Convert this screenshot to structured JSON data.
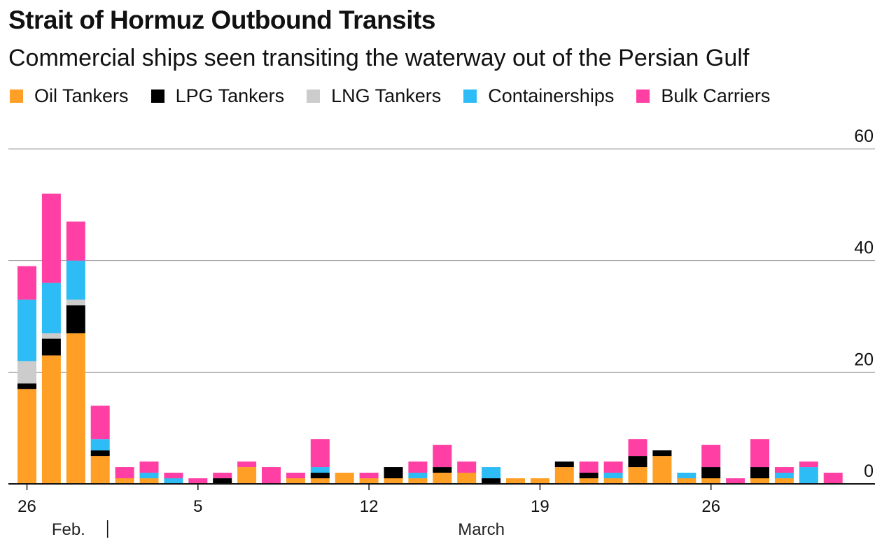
{
  "title": "Strait of Hormuz Outbound Transits",
  "subtitle": "Commercial ships seen transiting the waterway out of the Persian Gulf",
  "legend": [
    {
      "label": "Oil Tankers",
      "color": "#ff9f26"
    },
    {
      "label": "LPG Tankers",
      "color": "#000000"
    },
    {
      "label": "LNG Tankers",
      "color": "#cccccc"
    },
    {
      "label": "Containerships",
      "color": "#2dbcf5"
    },
    {
      "label": "Bulk Carriers",
      "color": "#ff3fa4"
    }
  ],
  "chart_data": {
    "type": "bar",
    "stacked": true,
    "ylim": [
      0,
      60
    ],
    "y_ticks": [
      0,
      20,
      40,
      60
    ],
    "y_axis_side": "right",
    "grid": true,
    "x_tick_labels": [
      {
        "day": 0,
        "label": "26"
      },
      {
        "day": 7,
        "label": "5"
      },
      {
        "day": 14,
        "label": "12"
      },
      {
        "day": 21,
        "label": "19"
      },
      {
        "day": 28,
        "label": "26"
      }
    ],
    "month_labels": [
      {
        "day": 1.7,
        "label": "Feb."
      },
      {
        "day": 18.6,
        "label": "March"
      }
    ],
    "month_divider_day": 3.3,
    "categories": [
      "Feb 26",
      "Feb 27",
      "Feb 28",
      "Mar 1",
      "Mar 2",
      "Mar 3",
      "Mar 4",
      "Mar 5",
      "Mar 6",
      "Mar 7",
      "Mar 8",
      "Mar 9",
      "Mar 10",
      "Mar 11",
      "Mar 12",
      "Mar 13",
      "Mar 14",
      "Mar 15",
      "Mar 16",
      "Mar 17",
      "Mar 18",
      "Mar 19",
      "Mar 20",
      "Mar 21",
      "Mar 22",
      "Mar 23",
      "Mar 24",
      "Mar 25",
      "Mar 26",
      "Mar 27",
      "Mar 28",
      "Mar 29",
      "Mar 30",
      "Mar 31"
    ],
    "series": [
      {
        "name": "Oil Tankers",
        "color": "#ff9f26",
        "values": [
          17,
          23,
          27,
          5,
          1,
          1,
          0,
          0,
          0,
          3,
          0,
          1,
          1,
          2,
          1,
          1,
          1,
          2,
          2,
          0,
          1,
          1,
          3,
          1,
          1,
          3,
          5,
          1,
          1,
          0,
          1,
          1,
          0,
          0
        ]
      },
      {
        "name": "LPG Tankers",
        "color": "#000000",
        "values": [
          1,
          3,
          5,
          1,
          0,
          0,
          0,
          0,
          1,
          0,
          0,
          0,
          1,
          0,
          0,
          2,
          0,
          1,
          0,
          1,
          0,
          0,
          1,
          1,
          0,
          2,
          1,
          0,
          2,
          0,
          2,
          0,
          0,
          0
        ]
      },
      {
        "name": "LNG Tankers",
        "color": "#cccccc",
        "values": [
          4,
          1,
          1,
          0,
          0,
          0,
          0,
          0,
          0,
          0,
          0,
          0,
          0,
          0,
          0,
          0,
          0,
          0,
          0,
          0,
          0,
          0,
          0,
          0,
          0,
          0,
          0,
          0,
          0,
          0,
          0,
          0,
          0,
          0
        ]
      },
      {
        "name": "Containerships",
        "color": "#2dbcf5",
        "values": [
          11,
          9,
          7,
          2,
          0,
          1,
          1,
          0,
          0,
          0,
          0,
          0,
          1,
          0,
          0,
          0,
          1,
          0,
          0,
          2,
          0,
          0,
          0,
          0,
          1,
          0,
          0,
          1,
          0,
          0,
          0,
          1,
          3,
          0
        ]
      },
      {
        "name": "Bulk Carriers",
        "color": "#ff3fa4",
        "values": [
          6,
          16,
          7,
          6,
          2,
          2,
          1,
          1,
          1,
          1,
          3,
          1,
          5,
          0,
          1,
          0,
          2,
          4,
          2,
          0,
          0,
          0,
          0,
          2,
          2,
          3,
          0,
          0,
          4,
          1,
          5,
          1,
          1,
          2
        ]
      }
    ]
  }
}
